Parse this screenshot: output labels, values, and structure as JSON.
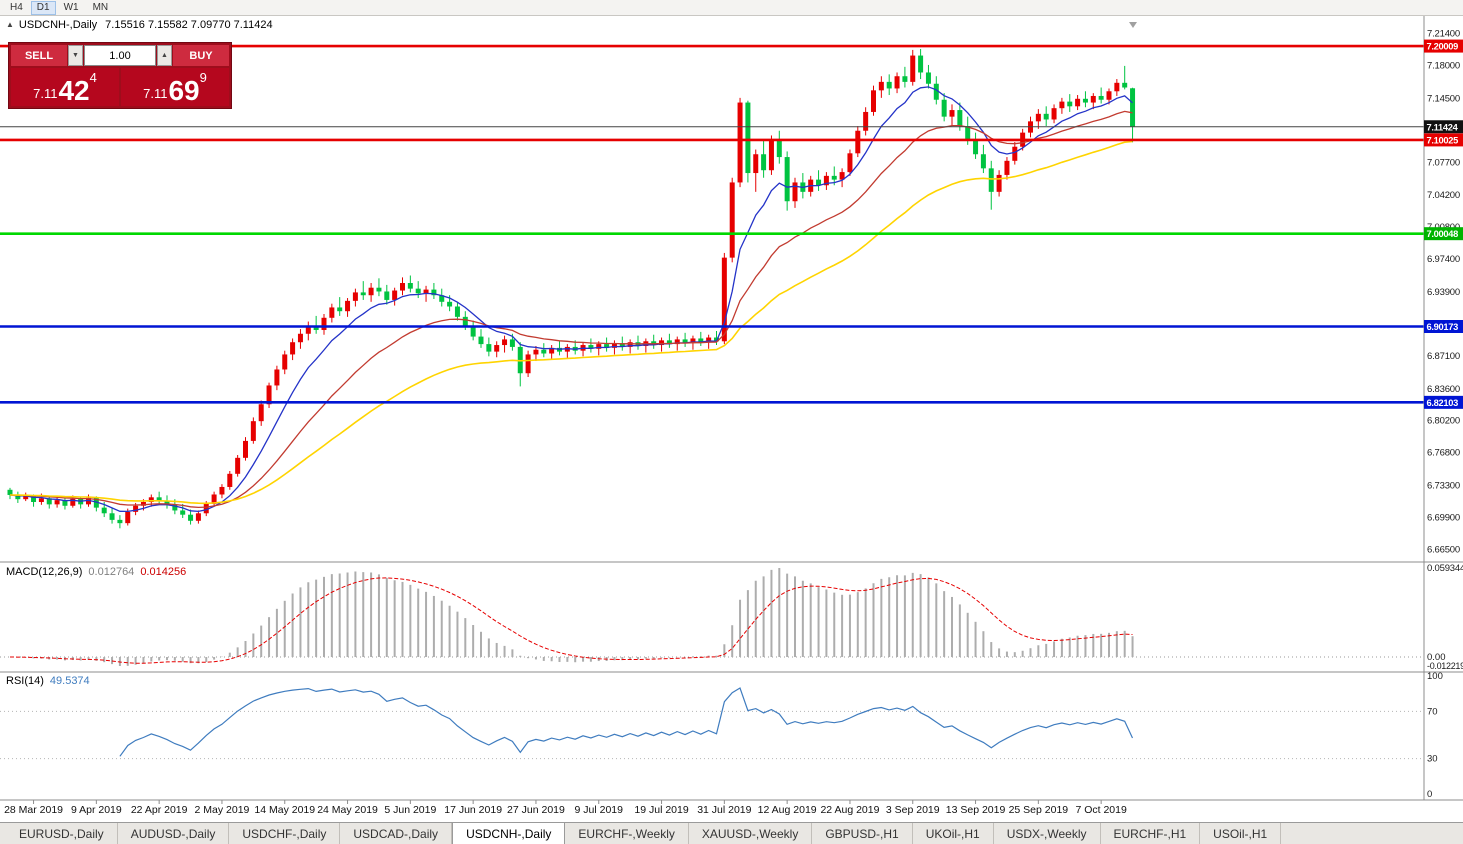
{
  "toolbar": {
    "timeframes": [
      {
        "label": "H4",
        "active": false
      },
      {
        "label": "D1",
        "active": true
      },
      {
        "label": "W1",
        "active": false
      },
      {
        "label": "MN",
        "active": false
      }
    ]
  },
  "chart": {
    "collapse_arrow": "▲",
    "symbol_label": "USDCNH-,Daily",
    "ohlc_text": "7.15516 7.15582 7.09770 7.11424"
  },
  "trade_panel": {
    "sell_label": "SELL",
    "buy_label": "BUY",
    "volume": "1.00",
    "spin_down_icon": "▼",
    "spin_up_icon": "▲",
    "sell_price": {
      "prefix": "7.11",
      "big": "42",
      "sup": "4"
    },
    "buy_price": {
      "prefix": "7.11",
      "big": "69",
      "sup": "9"
    }
  },
  "indicators": {
    "macd": {
      "label": "MACD(12,26,9)",
      "value1": "0.012764",
      "value2": "0.014256",
      "axis_max": "0.0593444",
      "axis_zero": "0.00",
      "axis_min": "-0.0122197",
      "hist_color": "#adadad",
      "signal_color": "#e60000"
    },
    "rsi": {
      "label": "RSI(14)",
      "value": "49.5374",
      "axis": [
        "100",
        "70",
        "30",
        "0"
      ],
      "levels": [
        70,
        30
      ],
      "line_color": "#3f7cbf"
    }
  },
  "price_axis": {
    "ticks": [
      7.214,
      7.18,
      7.145,
      7.077,
      7.042,
      7.008,
      6.974,
      6.939,
      6.871,
      6.836,
      6.802,
      6.768,
      6.733,
      6.699,
      6.665
    ],
    "badges": [
      {
        "value": 7.20009,
        "label": "7.20009",
        "color": "#e60000"
      },
      {
        "value": 7.11424,
        "label": "7.11424",
        "color": "#111111"
      },
      {
        "value": 7.10025,
        "label": "7.10025",
        "color": "#e60000"
      },
      {
        "value": 7.00048,
        "label": "7.00048",
        "color": "#00b400"
      },
      {
        "value": 6.90173,
        "label": "6.90173",
        "color": "#0015d4"
      },
      {
        "value": 6.82103,
        "label": "6.82103",
        "color": "#0015d4"
      }
    ]
  },
  "x_axis": {
    "labels": [
      {
        "label": "28 Mar 2019",
        "i": 3
      },
      {
        "label": "9 Apr 2019",
        "i": 11
      },
      {
        "label": "22 Apr 2019",
        "i": 19
      },
      {
        "label": "2 May 2019",
        "i": 27
      },
      {
        "label": "14 May 2019",
        "i": 35
      },
      {
        "label": "24 May 2019",
        "i": 43
      },
      {
        "label": "5 Jun 2019",
        "i": 51
      },
      {
        "label": "17 Jun 2019",
        "i": 59
      },
      {
        "label": "27 Jun 2019",
        "i": 67
      },
      {
        "label": "9 Jul 2019",
        "i": 75
      },
      {
        "label": "19 Jul 2019",
        "i": 83
      },
      {
        "label": "31 Jul 2019",
        "i": 91
      },
      {
        "label": "12 Aug 2019",
        "i": 99
      },
      {
        "label": "22 Aug 2019",
        "i": 107
      },
      {
        "label": "3 Sep 2019",
        "i": 115
      },
      {
        "label": "13 Sep 2019",
        "i": 123
      },
      {
        "label": "25 Sep 2019",
        "i": 131
      },
      {
        "label": "7 Oct 2019",
        "i": 139
      }
    ]
  },
  "tabs": {
    "active_index": 4,
    "items": [
      {
        "label": "EURUSD-,Daily"
      },
      {
        "label": "AUDUSD-,Daily"
      },
      {
        "label": "USDCHF-,Daily"
      },
      {
        "label": "USDCAD-,Daily"
      },
      {
        "label": "USDCNH-,Daily"
      },
      {
        "label": "EURCHF-,Weekly"
      },
      {
        "label": "XAUUSD-,Weekly"
      },
      {
        "label": "GBPUSD-,H1"
      },
      {
        "label": "UKOil-,H1"
      },
      {
        "label": "USDX-,Weekly"
      },
      {
        "label": "EURCHF-,H1"
      },
      {
        "label": "USOil-,H1"
      }
    ]
  },
  "chart_data": {
    "type": "candlestick",
    "symbol": "USDCNH",
    "period": "Daily",
    "current_price": 7.11424,
    "up_color": "#e60000",
    "down_color": "#00c341",
    "moving_averages": [
      {
        "period": 8,
        "color": "#2433c8"
      },
      {
        "period": 21,
        "color": "#c23b30"
      },
      {
        "period": 45,
        "color": "#ffd400"
      }
    ],
    "levels": [
      {
        "value": 7.20009,
        "color": "#e60000"
      },
      {
        "value": 7.10025,
        "color": "#e60000"
      },
      {
        "value": 7.00048,
        "color": "#00d800"
      },
      {
        "value": 6.90173,
        "color": "#0015d4"
      },
      {
        "value": 6.82103,
        "color": "#0015d4"
      }
    ],
    "candles": [
      [
        6.728,
        6.73,
        6.718,
        6.7225
      ],
      [
        6.7225,
        6.726,
        6.714,
        6.718
      ],
      [
        6.718,
        6.725,
        6.716,
        6.7215
      ],
      [
        6.7215,
        6.723,
        6.71,
        6.715
      ],
      [
        6.715,
        6.724,
        6.712,
        6.719
      ],
      [
        6.719,
        6.721,
        6.708,
        6.7125
      ],
      [
        6.7125,
        6.72,
        6.709,
        6.717
      ],
      [
        6.717,
        6.719,
        6.707,
        6.711
      ],
      [
        6.711,
        6.722,
        6.709,
        6.7185
      ],
      [
        6.7185,
        6.72,
        6.708,
        6.7125
      ],
      [
        6.7125,
        6.723,
        6.71,
        6.7195
      ],
      [
        6.7195,
        6.721,
        6.705,
        6.709
      ],
      [
        6.709,
        6.715,
        6.699,
        6.703
      ],
      [
        6.703,
        6.709,
        6.692,
        6.696
      ],
      [
        6.696,
        6.701,
        6.687,
        6.6925
      ],
      [
        6.6925,
        6.708,
        6.69,
        6.7045
      ],
      [
        6.7045,
        6.714,
        6.701,
        6.711
      ],
      [
        6.711,
        6.718,
        6.706,
        6.715
      ],
      [
        6.715,
        6.723,
        6.71,
        6.72
      ],
      [
        6.72,
        6.726,
        6.713,
        6.7165
      ],
      [
        6.7165,
        6.722,
        6.708,
        6.712
      ],
      [
        6.712,
        6.718,
        6.702,
        6.706
      ],
      [
        6.706,
        6.713,
        6.698,
        6.7015
      ],
      [
        6.7015,
        6.707,
        6.691,
        6.695
      ],
      [
        6.695,
        6.706,
        6.692,
        6.703
      ],
      [
        6.703,
        6.716,
        6.7,
        6.713
      ],
      [
        6.713,
        6.726,
        6.71,
        6.723
      ],
      [
        6.723,
        6.734,
        6.719,
        6.731
      ],
      [
        6.731,
        6.748,
        6.728,
        6.745
      ],
      [
        6.745,
        6.765,
        6.742,
        6.762
      ],
      [
        6.762,
        6.784,
        6.759,
        6.78
      ],
      [
        6.78,
        6.805,
        6.777,
        6.801
      ],
      [
        6.801,
        6.823,
        6.796,
        6.819
      ],
      [
        6.819,
        6.842,
        6.815,
        6.839
      ],
      [
        6.839,
        6.86,
        6.834,
        6.856
      ],
      [
        6.856,
        6.876,
        6.851,
        6.872
      ],
      [
        6.872,
        6.889,
        6.866,
        6.885
      ],
      [
        6.885,
        6.899,
        6.878,
        6.894
      ],
      [
        6.894,
        6.907,
        6.887,
        6.902
      ],
      [
        6.902,
        6.913,
        6.894,
        6.898
      ],
      [
        6.898,
        6.915,
        6.893,
        6.911
      ],
      [
        6.911,
        6.926,
        6.906,
        6.922
      ],
      [
        6.922,
        6.933,
        6.913,
        6.918
      ],
      [
        6.918,
        6.932,
        6.912,
        6.929
      ],
      [
        6.929,
        6.942,
        6.923,
        6.938
      ],
      [
        6.938,
        6.95,
        6.93,
        6.935
      ],
      [
        6.935,
        6.948,
        6.928,
        6.943
      ],
      [
        6.943,
        6.953,
        6.934,
        6.939
      ],
      [
        6.939,
        6.946,
        6.925,
        6.93
      ],
      [
        6.93,
        6.943,
        6.924,
        6.94
      ],
      [
        6.94,
        6.954,
        6.935,
        6.948
      ],
      [
        6.948,
        6.956,
        6.938,
        6.942
      ],
      [
        6.942,
        6.95,
        6.932,
        6.937
      ],
      [
        6.937,
        6.945,
        6.928,
        6.941
      ],
      [
        6.941,
        6.948,
        6.931,
        6.935
      ],
      [
        6.935,
        6.942,
        6.923,
        6.928
      ],
      [
        6.928,
        6.935,
        6.918,
        6.923
      ],
      [
        6.923,
        6.928,
        6.908,
        6.912
      ],
      [
        6.912,
        6.918,
        6.898,
        6.902
      ],
      [
        6.902,
        6.908,
        6.887,
        6.891
      ],
      [
        6.891,
        6.899,
        6.879,
        6.883
      ],
      [
        6.883,
        6.89,
        6.87,
        6.875
      ],
      [
        6.875,
        6.886,
        6.869,
        6.882
      ],
      [
        6.882,
        6.892,
        6.874,
        6.888
      ],
      [
        6.888,
        6.894,
        6.876,
        6.88
      ],
      [
        6.88,
        6.885,
        6.838,
        6.852
      ],
      [
        6.852,
        6.876,
        6.848,
        6.872
      ],
      [
        6.872,
        6.881,
        6.865,
        6.877
      ],
      [
        6.877,
        6.884,
        6.869,
        6.873
      ],
      [
        6.873,
        6.882,
        6.867,
        6.879
      ],
      [
        6.879,
        6.886,
        6.871,
        6.875
      ],
      [
        6.875,
        6.883,
        6.868,
        6.88
      ],
      [
        6.88,
        6.887,
        6.872,
        6.876
      ],
      [
        6.876,
        6.885,
        6.87,
        6.882
      ],
      [
        6.882,
        6.889,
        6.874,
        6.878
      ],
      [
        6.878,
        6.886,
        6.871,
        6.883
      ],
      [
        6.883,
        6.89,
        6.875,
        6.879
      ],
      [
        6.879,
        6.887,
        6.872,
        6.884
      ],
      [
        6.884,
        6.891,
        6.876,
        6.88
      ],
      [
        6.88,
        6.888,
        6.873,
        6.885
      ],
      [
        6.885,
        6.892,
        6.877,
        6.881
      ],
      [
        6.881,
        6.889,
        6.874,
        6.886
      ],
      [
        6.886,
        6.893,
        6.878,
        6.882
      ],
      [
        6.882,
        6.89,
        6.875,
        6.887
      ],
      [
        6.887,
        6.894,
        6.879,
        6.883
      ],
      [
        6.883,
        6.891,
        6.876,
        6.888
      ],
      [
        6.888,
        6.895,
        6.88,
        6.884
      ],
      [
        6.884,
        6.892,
        6.877,
        6.889
      ],
      [
        6.889,
        6.896,
        6.881,
        6.885
      ],
      [
        6.885,
        6.893,
        6.878,
        6.89
      ],
      [
        6.89,
        6.897,
        6.882,
        6.886
      ],
      [
        6.886,
        6.98,
        6.883,
        6.975
      ],
      [
        6.975,
        7.06,
        6.97,
        7.055
      ],
      [
        7.055,
        7.145,
        7.05,
        7.14
      ],
      [
        7.14,
        7.142,
        7.055,
        7.065
      ],
      [
        7.065,
        7.09,
        7.045,
        7.085
      ],
      [
        7.085,
        7.1,
        7.06,
        7.068
      ],
      [
        7.068,
        7.105,
        7.063,
        7.1
      ],
      [
        7.1,
        7.11,
        7.075,
        7.082
      ],
      [
        7.082,
        7.088,
        7.025,
        7.035
      ],
      [
        7.035,
        7.06,
        7.028,
        7.055
      ],
      [
        7.055,
        7.065,
        7.038,
        7.045
      ],
      [
        7.045,
        7.062,
        7.04,
        7.058
      ],
      [
        7.058,
        7.068,
        7.046,
        7.052
      ],
      [
        7.052,
        7.066,
        7.047,
        7.062
      ],
      [
        7.062,
        7.072,
        7.052,
        7.058
      ],
      [
        7.058,
        7.07,
        7.05,
        7.066
      ],
      [
        7.066,
        7.09,
        7.062,
        7.086
      ],
      [
        7.086,
        7.115,
        7.082,
        7.11
      ],
      [
        7.11,
        7.135,
        7.105,
        7.13
      ],
      [
        7.13,
        7.158,
        7.126,
        7.153
      ],
      [
        7.153,
        7.168,
        7.145,
        7.162
      ],
      [
        7.162,
        7.17,
        7.148,
        7.155
      ],
      [
        7.155,
        7.172,
        7.15,
        7.168
      ],
      [
        7.168,
        7.178,
        7.156,
        7.162
      ],
      [
        7.162,
        7.196,
        7.158,
        7.19
      ],
      [
        7.19,
        7.197,
        7.165,
        7.172
      ],
      [
        7.172,
        7.18,
        7.155,
        7.16
      ],
      [
        7.16,
        7.168,
        7.138,
        7.143
      ],
      [
        7.143,
        7.15,
        7.12,
        7.125
      ],
      [
        7.125,
        7.138,
        7.115,
        7.132
      ],
      [
        7.132,
        7.14,
        7.11,
        7.115
      ],
      [
        7.115,
        7.125,
        7.095,
        7.1
      ],
      [
        7.1,
        7.108,
        7.08,
        7.085
      ],
      [
        7.085,
        7.095,
        7.065,
        7.07
      ],
      [
        7.07,
        7.078,
        7.026,
        7.045
      ],
      [
        7.045,
        7.068,
        7.04,
        7.063
      ],
      [
        7.063,
        7.082,
        7.058,
        7.078
      ],
      [
        7.078,
        7.098,
        7.074,
        7.093
      ],
      [
        7.093,
        7.112,
        7.089,
        7.108
      ],
      [
        7.108,
        7.125,
        7.103,
        7.12
      ],
      [
        7.12,
        7.133,
        7.112,
        7.128
      ],
      [
        7.128,
        7.136,
        7.115,
        7.122
      ],
      [
        7.122,
        7.138,
        7.118,
        7.134
      ],
      [
        7.134,
        7.145,
        7.128,
        7.141
      ],
      [
        7.141,
        7.149,
        7.13,
        7.136
      ],
      [
        7.136,
        7.148,
        7.132,
        7.144
      ],
      [
        7.144,
        7.152,
        7.135,
        7.14
      ],
      [
        7.14,
        7.15,
        7.133,
        7.147
      ],
      [
        7.147,
        7.156,
        7.139,
        7.143
      ],
      [
        7.143,
        7.155,
        7.138,
        7.152
      ],
      [
        7.152,
        7.165,
        7.147,
        7.161
      ],
      [
        7.161,
        7.179,
        7.154,
        7.156
      ],
      [
        7.1552,
        7.1558,
        7.0977,
        7.1142
      ]
    ]
  }
}
